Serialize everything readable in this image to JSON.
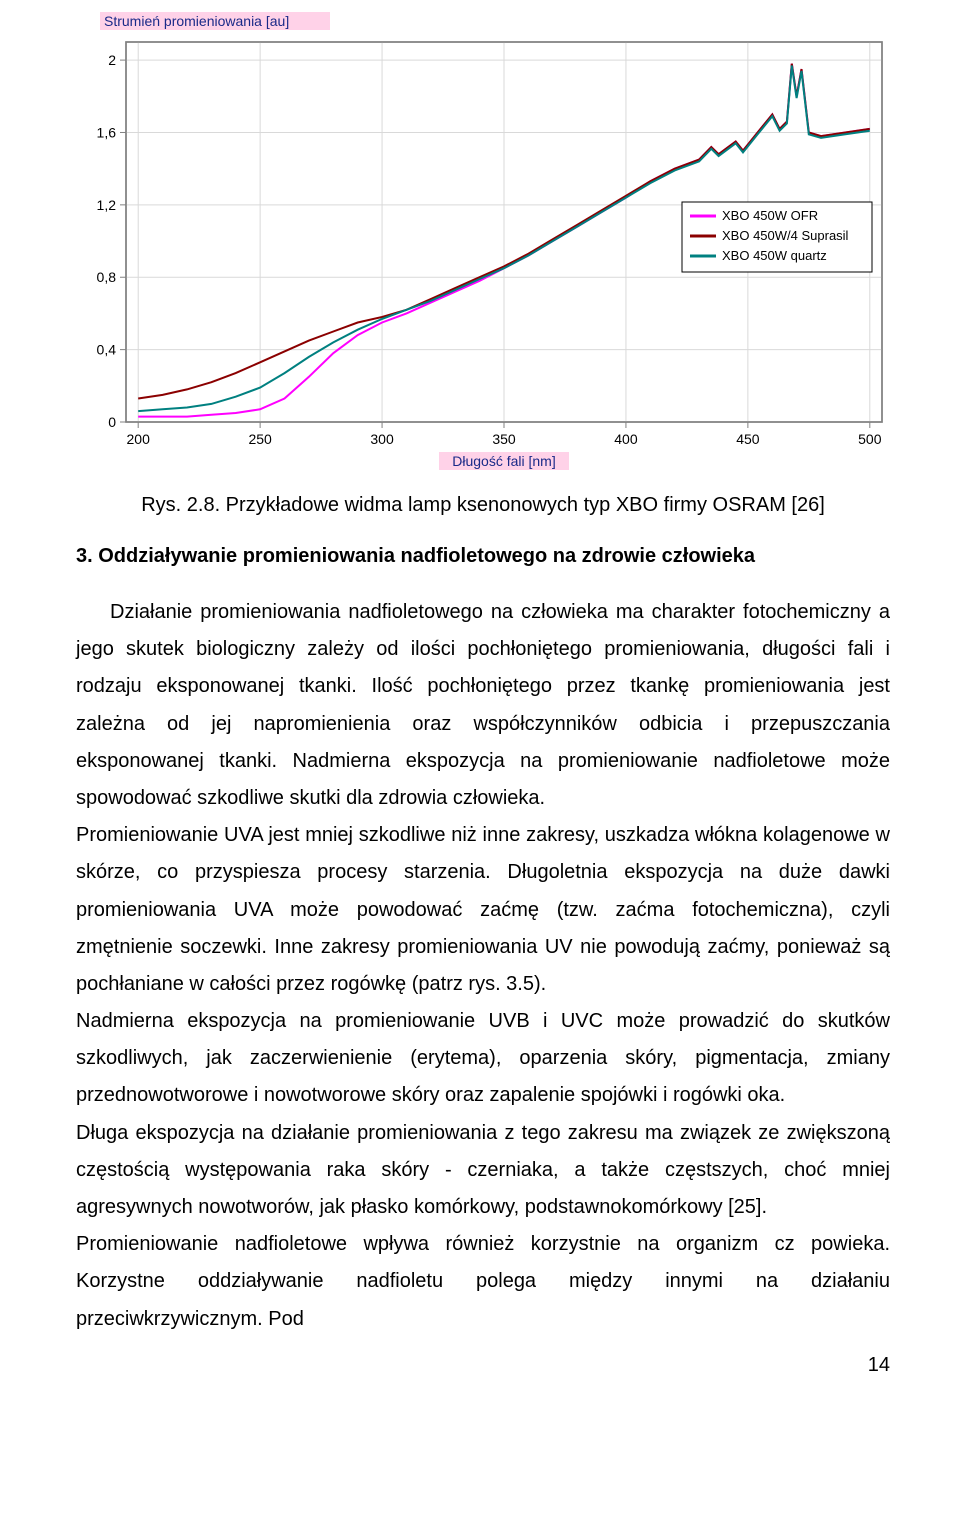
{
  "chart": {
    "type": "line",
    "y_axis": {
      "label": "Strumień promieniowania [au]",
      "label_color": "#1a2a88",
      "label_fontsize": 14,
      "highlight_bg": "#ffd2e8",
      "ticks": [
        0,
        0.4,
        0.8,
        1.2,
        1.6,
        2
      ],
      "ylim": [
        0,
        2.1
      ]
    },
    "x_axis": {
      "label": "Długość fali [nm]",
      "label_color": "#1a2a88",
      "label_fontsize": 14,
      "highlight_bg": "#ffd2e8",
      "ticks": [
        200,
        250,
        300,
        350,
        400,
        450,
        500
      ],
      "xlim": [
        195,
        505
      ]
    },
    "grid_color": "#d9d9d9",
    "axis_color": "#808080",
    "plot_bg": "#ffffff",
    "page_bg": "#fefffa",
    "legend": {
      "border_color": "#000000",
      "items": [
        {
          "label": "XBO 450W OFR",
          "color": "#ff00ff"
        },
        {
          "label": "XBO 450W/4 Suprasil",
          "color": "#8b0000"
        },
        {
          "label": "XBO 450W quartz",
          "color": "#008080"
        }
      ]
    },
    "series": [
      {
        "name": "XBO 450W OFR",
        "color": "#ff00ff",
        "stroke_width": 2,
        "points": [
          [
            200,
            0.03
          ],
          [
            210,
            0.03
          ],
          [
            220,
            0.03
          ],
          [
            230,
            0.04
          ],
          [
            240,
            0.05
          ],
          [
            250,
            0.07
          ],
          [
            260,
            0.13
          ],
          [
            270,
            0.25
          ],
          [
            280,
            0.38
          ],
          [
            290,
            0.48
          ],
          [
            300,
            0.55
          ],
          [
            310,
            0.6
          ],
          [
            320,
            0.66
          ],
          [
            330,
            0.72
          ],
          [
            340,
            0.78
          ],
          [
            350,
            0.85
          ],
          [
            360,
            0.92
          ],
          [
            370,
            1.0
          ],
          [
            380,
            1.08
          ],
          [
            390,
            1.16
          ],
          [
            400,
            1.24
          ],
          [
            410,
            1.33
          ],
          [
            420,
            1.4
          ],
          [
            430,
            1.45
          ],
          [
            435,
            1.52
          ],
          [
            438,
            1.48
          ],
          [
            445,
            1.55
          ],
          [
            448,
            1.5
          ],
          [
            454,
            1.6
          ],
          [
            460,
            1.7
          ],
          [
            463,
            1.62
          ],
          [
            466,
            1.66
          ],
          [
            468,
            1.98
          ],
          [
            470,
            1.8
          ],
          [
            472,
            1.95
          ],
          [
            475,
            1.6
          ],
          [
            480,
            1.58
          ],
          [
            490,
            1.6
          ],
          [
            500,
            1.62
          ]
        ]
      },
      {
        "name": "XBO 450W/4 Suprasil",
        "color": "#8b0000",
        "stroke_width": 2,
        "points": [
          [
            200,
            0.13
          ],
          [
            210,
            0.15
          ],
          [
            220,
            0.18
          ],
          [
            230,
            0.22
          ],
          [
            240,
            0.27
          ],
          [
            250,
            0.33
          ],
          [
            260,
            0.39
          ],
          [
            270,
            0.45
          ],
          [
            280,
            0.5
          ],
          [
            290,
            0.55
          ],
          [
            300,
            0.58
          ],
          [
            310,
            0.62
          ],
          [
            320,
            0.68
          ],
          [
            330,
            0.74
          ],
          [
            340,
            0.8
          ],
          [
            350,
            0.86
          ],
          [
            360,
            0.93
          ],
          [
            370,
            1.01
          ],
          [
            380,
            1.09
          ],
          [
            390,
            1.17
          ],
          [
            400,
            1.25
          ],
          [
            410,
            1.33
          ],
          [
            420,
            1.4
          ],
          [
            430,
            1.45
          ],
          [
            435,
            1.52
          ],
          [
            438,
            1.48
          ],
          [
            445,
            1.55
          ],
          [
            448,
            1.5
          ],
          [
            454,
            1.6
          ],
          [
            460,
            1.7
          ],
          [
            463,
            1.62
          ],
          [
            466,
            1.66
          ],
          [
            468,
            1.98
          ],
          [
            470,
            1.8
          ],
          [
            472,
            1.95
          ],
          [
            475,
            1.6
          ],
          [
            480,
            1.58
          ],
          [
            490,
            1.6
          ],
          [
            500,
            1.62
          ]
        ]
      },
      {
        "name": "XBO 450W quartz",
        "color": "#008080",
        "stroke_width": 2,
        "points": [
          [
            200,
            0.06
          ],
          [
            210,
            0.07
          ],
          [
            220,
            0.08
          ],
          [
            230,
            0.1
          ],
          [
            240,
            0.14
          ],
          [
            250,
            0.19
          ],
          [
            260,
            0.27
          ],
          [
            270,
            0.36
          ],
          [
            280,
            0.44
          ],
          [
            290,
            0.51
          ],
          [
            300,
            0.57
          ],
          [
            310,
            0.62
          ],
          [
            320,
            0.67
          ],
          [
            330,
            0.73
          ],
          [
            340,
            0.79
          ],
          [
            350,
            0.85
          ],
          [
            360,
            0.92
          ],
          [
            370,
            1.0
          ],
          [
            380,
            1.08
          ],
          [
            390,
            1.16
          ],
          [
            400,
            1.24
          ],
          [
            410,
            1.32
          ],
          [
            420,
            1.39
          ],
          [
            430,
            1.44
          ],
          [
            435,
            1.51
          ],
          [
            438,
            1.47
          ],
          [
            445,
            1.54
          ],
          [
            448,
            1.49
          ],
          [
            454,
            1.59
          ],
          [
            460,
            1.69
          ],
          [
            463,
            1.61
          ],
          [
            466,
            1.65
          ],
          [
            468,
            1.97
          ],
          [
            470,
            1.79
          ],
          [
            472,
            1.94
          ],
          [
            475,
            1.59
          ],
          [
            480,
            1.57
          ],
          [
            490,
            1.59
          ],
          [
            500,
            1.61
          ]
        ]
      }
    ]
  },
  "caption": "Rys. 2.8. Przykładowe widma lamp ksenonowych typ XBO firmy OSRAM [26]",
  "section_title": "3. Oddziaływanie promieniowania nadfioletowego na zdrowie człowieka",
  "paragraphs": [
    "Działanie promieniowania nadfioletowego na człowieka ma charakter fotochemiczny a jego skutek biologiczny zależy od ilości pochłoniętego promieniowania, długości fali i rodzaju eksponowanej tkanki. Ilość pochłoniętego przez tkankę promieniowania jest zależna od jej napromienienia oraz współczynników odbicia i przepuszczania eksponowanej tkanki. Nadmierna ekspozycja na promieniowanie nadfioletowe może spowodować szkodliwe skutki dla zdrowia człowieka.",
    "Promieniowanie UVA jest mniej szkodliwe niż inne zakresy, uszkadza włókna kolagenowe w skórze, co przyspiesza procesy starzenia. Długoletnia ekspozycja na duże dawki promieniowania UVA może powodować zaćmę (tzw. zaćma fotochemiczna), czyli zmętnienie soczewki. Inne zakresy promieniowania UV nie powodują zaćmy, ponieważ są pochłaniane w całości przez rogówkę (patrz rys. 3.5).",
    "Nadmierna ekspozycja na promieniowanie UVB i UVC może prowadzić do skutków szkodliwych, jak zaczerwienienie (erytema), oparzenia skóry, pigmentacja, zmiany przednowotworowe i nowotworowe skóry oraz zapalenie spojówki i rogówki oka.",
    "Długa ekspozycja na działanie promieniowania z tego zakresu ma związek ze zwiększoną częstością występowania raka skóry - czerniaka, a także częstszych, choć mniej agresywnych nowotworów, jak płasko komórkowy, podstawnokomórkowy [25].",
    "Promieniowanie nadfioletowe wpływa również korzystnie na organizm cz powieka. Korzystne oddziaływanie nadfioletu polega między innymi na działaniu przeciwkrzywicznym. Pod"
  ],
  "page_number": "14"
}
